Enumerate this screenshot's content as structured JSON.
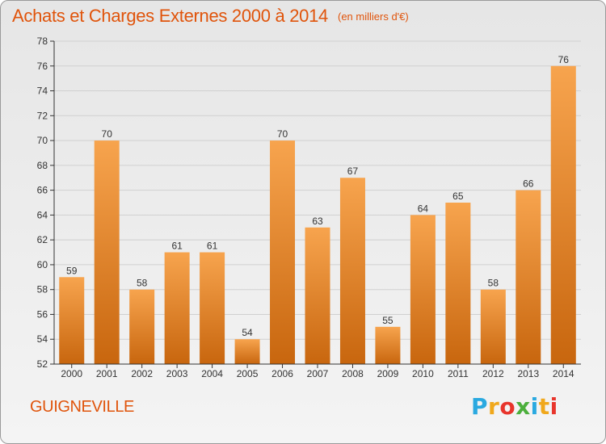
{
  "title": "Achats et Charges Externes 2000 à 2014",
  "subtitle": "(en milliers d'€)",
  "commune": "GUIGNEVILLE",
  "logo": {
    "text": "Proxiti",
    "colors": [
      "#2aa9e0",
      "#f0a81c",
      "#e8352c",
      "#4caf3c",
      "#2aa9e0",
      "#f0a81c",
      "#e8352c"
    ]
  },
  "colors": {
    "title": "#e0540b",
    "bar_top": "#f7a44e",
    "bar_bottom": "#c8660e",
    "axis": "#333333",
    "grid": "#d0d0d0"
  },
  "chart_data": {
    "type": "bar",
    "title": "Achats et Charges Externes 2000 à 2014",
    "ylabel": "",
    "xlabel": "",
    "categories": [
      "2000",
      "2001",
      "2002",
      "2003",
      "2004",
      "2005",
      "2006",
      "2007",
      "2008",
      "2009",
      "2010",
      "2011",
      "2012",
      "2013",
      "2014"
    ],
    "values": [
      59,
      70,
      58,
      61,
      61,
      54,
      70,
      63,
      67,
      55,
      64,
      65,
      58,
      66,
      76
    ],
    "ylim": [
      52,
      78
    ],
    "yticks": [
      52,
      54,
      56,
      58,
      60,
      62,
      64,
      66,
      68,
      70,
      72,
      74,
      76,
      78
    ],
    "grid": true,
    "data_labels": true
  }
}
